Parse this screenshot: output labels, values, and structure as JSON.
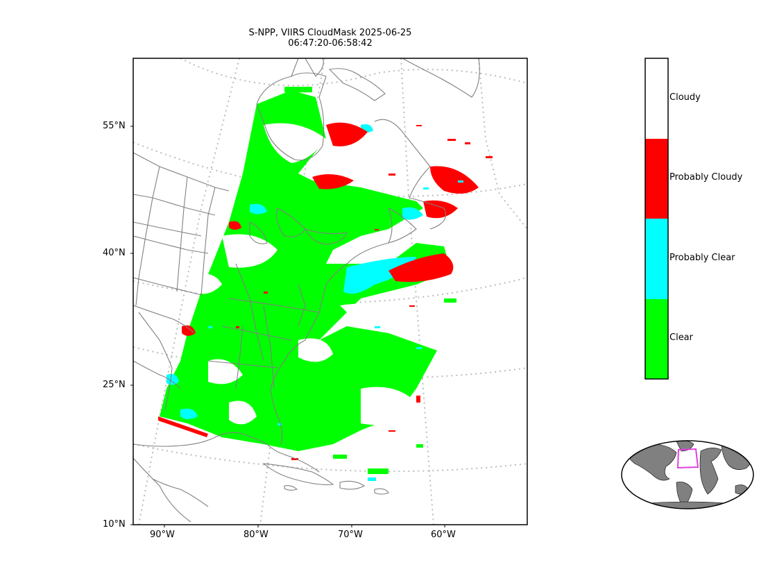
{
  "title": {
    "line1": "S-NPP, VIIRS CloudMask 2025-06-25",
    "line2": "06:47:20-06:58:42"
  },
  "axes": {
    "lat_ticks": [
      "55°N",
      "40°N",
      "25°N",
      "10°N"
    ],
    "lon_ticks": [
      "90°W",
      "80°W",
      "70°W",
      "60°W"
    ]
  },
  "legend": {
    "categories": [
      {
        "label": "Cloudy",
        "color": "#ffffff"
      },
      {
        "label": "Probably Cloudy",
        "color": "#ff0000"
      },
      {
        "label": "Probably Clear",
        "color": "#00ffff"
      },
      {
        "label": "Clear",
        "color": "#00ff00"
      }
    ]
  },
  "inset": {
    "land_color": "#808080",
    "highlight_color": "#e040e0"
  },
  "map_style": {
    "coastline_color": "#808080",
    "graticule_color": "#bbbbbb"
  }
}
